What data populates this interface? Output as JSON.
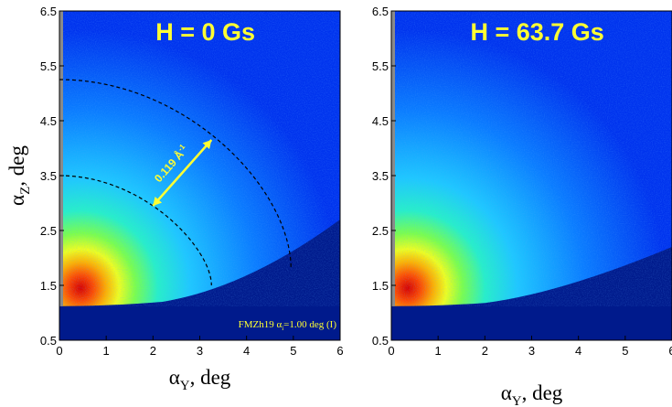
{
  "chart_data": [
    {
      "type": "heatmap",
      "title": "H = 0 Gs",
      "xlabel_symbol": "α",
      "xlabel_sub": "Y",
      "xlabel_unit": ", deg",
      "ylabel_symbol": "α",
      "ylabel_sub": "Z",
      "ylabel_unit": ", deg",
      "xlim": [
        0,
        6
      ],
      "ylim": [
        0.5,
        6.5
      ],
      "xticks": [
        0,
        1,
        2,
        3,
        4,
        5,
        6
      ],
      "yticks": [
        0.5,
        1.5,
        2.5,
        3.5,
        4.5,
        5.5,
        6.5
      ],
      "intensity_peak": [
        0.45,
        1.45
      ],
      "horizon_alpha_z": 1.12,
      "rings": [
        {
          "radius_ay": 3.3,
          "alpha_z_at_ay0": 3.5,
          "end_ay": 3.25,
          "end_az": 1.5
        },
        {
          "radius_ay": 4.95,
          "alpha_z_at_ay0": 5.25,
          "end_ay": 4.95,
          "end_az": 1.8
        }
      ],
      "annotation": {
        "text": "0.119 Å",
        "superscript": "-1",
        "arrow_from": [
          2.0,
          2.95
        ],
        "arrow_to": [
          3.25,
          4.15
        ],
        "color": "#ffff33"
      },
      "caption": {
        "prefix": "FMZh19 α",
        "sub": "i",
        "suffix": "=1.00 deg (I)",
        "color": "#ffff33"
      }
    },
    {
      "type": "heatmap",
      "title": "H = 63.7 Gs",
      "xlabel_symbol": "α",
      "xlabel_sub": "Y",
      "xlabel_unit": ", deg",
      "xlim": [
        0,
        6
      ],
      "ylim": [
        0.5,
        6.5
      ],
      "xticks": [
        0,
        1,
        2,
        3,
        4,
        5,
        6
      ],
      "yticks": [
        0.5,
        1.5,
        2.5,
        3.5,
        4.5,
        5.5,
        6.5
      ],
      "intensity_peak": [
        0.35,
        1.45
      ],
      "horizon_alpha_z": 1.12
    }
  ],
  "colors": {
    "title": "#ffff33",
    "background_low": "#001a8c",
    "colormap": [
      "#00127a",
      "#0033ee",
      "#0a7cff",
      "#1ec8ff",
      "#27f0c8",
      "#7cff4a",
      "#f0ff1e",
      "#ffb000",
      "#ff4a00",
      "#d80000"
    ]
  }
}
